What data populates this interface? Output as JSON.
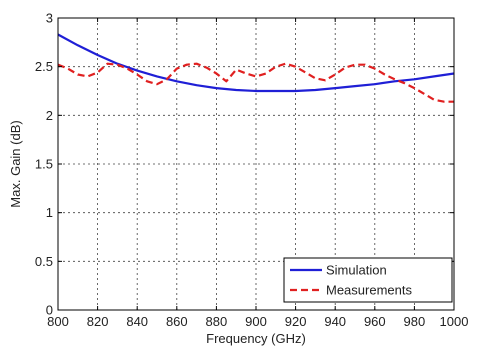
{
  "chart_data": {
    "type": "line",
    "title": "",
    "xlabel": "Frequency (GHz)",
    "ylabel": "Max. Gain (dB)",
    "xlim": [
      800,
      1000
    ],
    "ylim": [
      0,
      3
    ],
    "xticks": [
      800,
      820,
      840,
      860,
      880,
      900,
      920,
      940,
      960,
      980,
      1000
    ],
    "yticks": [
      0,
      0.5,
      1,
      1.5,
      2,
      2.5,
      3
    ],
    "xtick_labels": [
      "800",
      "820",
      "840",
      "860",
      "880",
      "900",
      "920",
      "940",
      "960",
      "980",
      "1000"
    ],
    "ytick_labels": [
      "0",
      "0.5",
      "1",
      "1.5",
      "2",
      "2.5",
      "3"
    ],
    "grid": true,
    "legend_position": "bottom-right",
    "series": [
      {
        "name": "Simulation",
        "color": "#1f1fd6",
        "line_style": "solid",
        "x": [
          800,
          810,
          820,
          830,
          840,
          850,
          860,
          870,
          880,
          890,
          900,
          910,
          920,
          930,
          940,
          950,
          960,
          970,
          980,
          990,
          1000
        ],
        "values": [
          2.83,
          2.72,
          2.62,
          2.53,
          2.46,
          2.4,
          2.35,
          2.31,
          2.28,
          2.26,
          2.25,
          2.25,
          2.25,
          2.26,
          2.28,
          2.3,
          2.32,
          2.35,
          2.37,
          2.4,
          2.43
        ]
      },
      {
        "name": "Measurements",
        "color": "#e02020",
        "line_style": "dashed",
        "x": [
          800,
          805,
          810,
          815,
          820,
          825,
          830,
          835,
          840,
          845,
          850,
          855,
          860,
          865,
          870,
          875,
          880,
          885,
          890,
          895,
          900,
          905,
          910,
          915,
          920,
          925,
          930,
          935,
          940,
          945,
          950,
          955,
          960,
          965,
          970,
          975,
          980,
          985,
          990,
          995,
          1000
        ],
        "values": [
          2.52,
          2.48,
          2.42,
          2.4,
          2.44,
          2.53,
          2.52,
          2.48,
          2.42,
          2.35,
          2.32,
          2.37,
          2.48,
          2.52,
          2.53,
          2.49,
          2.43,
          2.35,
          2.47,
          2.43,
          2.4,
          2.43,
          2.5,
          2.53,
          2.5,
          2.44,
          2.38,
          2.36,
          2.42,
          2.49,
          2.52,
          2.52,
          2.48,
          2.42,
          2.37,
          2.33,
          2.28,
          2.22,
          2.16,
          2.14,
          2.14
        ]
      }
    ]
  }
}
